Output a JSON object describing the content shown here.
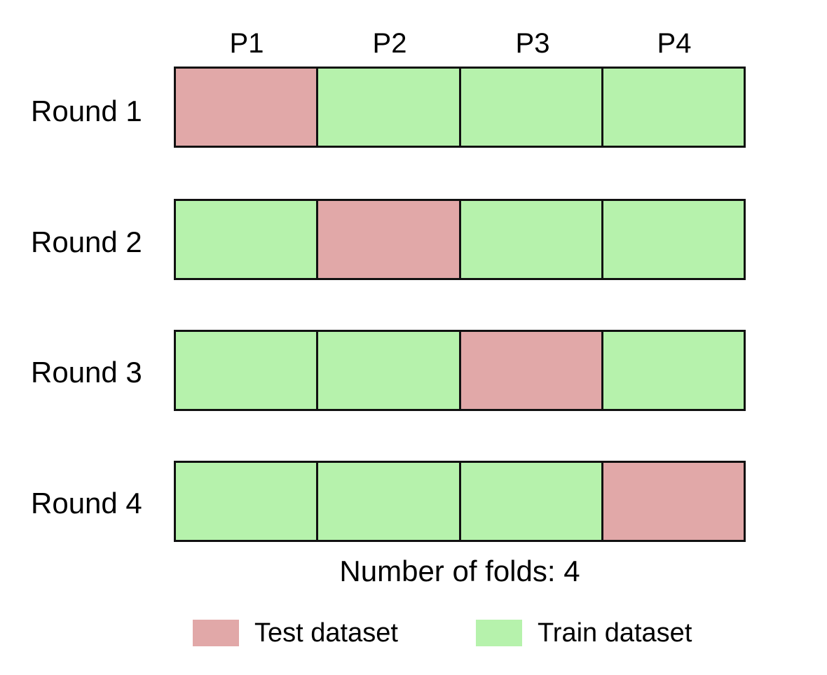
{
  "colors": {
    "test": "#e1a8a8",
    "train": "#b6f2ac",
    "border": "#111111"
  },
  "partitions": [
    "P1",
    "P2",
    "P3",
    "P4"
  ],
  "rounds": [
    {
      "label": "Round 1",
      "folds": [
        "test",
        "train",
        "train",
        "train"
      ]
    },
    {
      "label": "Round 2",
      "folds": [
        "train",
        "test",
        "train",
        "train"
      ]
    },
    {
      "label": "Round 3",
      "folds": [
        "train",
        "train",
        "test",
        "train"
      ]
    },
    {
      "label": "Round 4",
      "folds": [
        "train",
        "train",
        "train",
        "test"
      ]
    }
  ],
  "footer": "Number of folds: 4",
  "legend": {
    "test_label": "Test dataset",
    "train_label": "Train dataset"
  }
}
